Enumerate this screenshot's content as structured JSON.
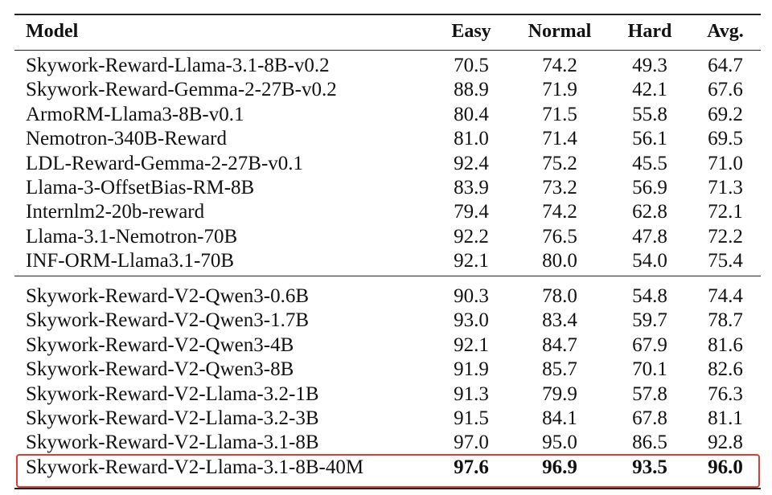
{
  "table": {
    "header": [
      "Model",
      "Easy",
      "Normal",
      "Hard",
      "Avg."
    ],
    "groups": [
      [
        [
          "Skywork-Reward-Llama-3.1-8B-v0.2",
          "70.5",
          "74.2",
          "49.3",
          "64.7"
        ],
        [
          "Skywork-Reward-Gemma-2-27B-v0.2",
          "88.9",
          "71.9",
          "42.1",
          "67.6"
        ],
        [
          "ArmoRM-Llama3-8B-v0.1",
          "80.4",
          "71.5",
          "55.8",
          "69.2"
        ],
        [
          "Nemotron-340B-Reward",
          "81.0",
          "71.4",
          "56.1",
          "69.5"
        ],
        [
          "LDL-Reward-Gemma-2-27B-v0.1",
          "92.4",
          "75.2",
          "45.5",
          "71.0"
        ],
        [
          "Llama-3-OffsetBias-RM-8B",
          "83.9",
          "73.2",
          "56.9",
          "71.3"
        ],
        [
          "Internlm2-20b-reward",
          "79.4",
          "74.2",
          "62.8",
          "72.1"
        ],
        [
          "Llama-3.1-Nemotron-70B",
          "92.2",
          "76.5",
          "47.8",
          "72.2"
        ],
        [
          "INF-ORM-Llama3.1-70B",
          "92.1",
          "80.0",
          "54.0",
          "75.4"
        ]
      ],
      [
        [
          "Skywork-Reward-V2-Qwen3-0.6B",
          "90.3",
          "78.0",
          "54.8",
          "74.4"
        ],
        [
          "Skywork-Reward-V2-Qwen3-1.7B",
          "93.0",
          "83.4",
          "59.7",
          "78.7"
        ],
        [
          "Skywork-Reward-V2-Qwen3-4B",
          "92.1",
          "84.7",
          "67.9",
          "81.6"
        ],
        [
          "Skywork-Reward-V2-Qwen3-8B",
          "91.9",
          "85.7",
          "70.1",
          "82.6"
        ],
        [
          "Skywork-Reward-V2-Llama-3.2-1B",
          "91.3",
          "79.9",
          "57.8",
          "76.3"
        ],
        [
          "Skywork-Reward-V2-Llama-3.2-3B",
          "91.5",
          "84.1",
          "67.8",
          "81.1"
        ],
        [
          "Skywork-Reward-V2-Llama-3.1-8B",
          "97.0",
          "95.0",
          "86.5",
          "92.8"
        ],
        [
          "Skywork-Reward-V2-Llama-3.1-8B-40M",
          "97.6",
          "96.9",
          "93.5",
          "96.0"
        ]
      ]
    ]
  }
}
